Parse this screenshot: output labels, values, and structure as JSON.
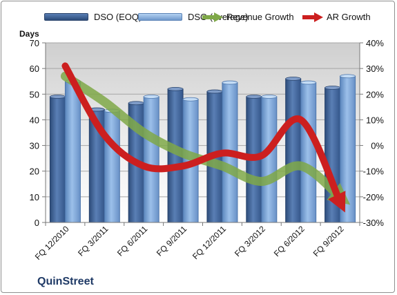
{
  "chart_data": {
    "type": "bar",
    "categories": [
      "FQ 12/2010",
      "FQ 3/2011",
      "FQ 6/2011",
      "FQ 9/2011",
      "FQ 12/2011",
      "FQ 3/2012",
      "FQ 6/2012",
      "FQ 9/2012"
    ],
    "series": [
      {
        "name": "DSO (EOQ)",
        "type": "bar",
        "axis": "left",
        "values": [
          49,
          44,
          46.5,
          52,
          51,
          49,
          56,
          52.5
        ]
      },
      {
        "name": "DSO (average)",
        "type": "bar",
        "axis": "left",
        "values": [
          55,
          43.5,
          49,
          48,
          54.5,
          49,
          54.5,
          57
        ]
      },
      {
        "name": "Revenue Growth",
        "type": "line",
        "axis": "right",
        "values": [
          27,
          17,
          5,
          -3,
          -8,
          -14,
          -8,
          -20
        ]
      },
      {
        "name": "AR Growth",
        "type": "line",
        "axis": "right",
        "values": [
          31,
          4,
          -8,
          -8,
          -3,
          -4,
          10,
          -22
        ]
      }
    ],
    "ylabel": "Days",
    "ylim": [
      0,
      70
    ],
    "yticks": [
      0,
      10,
      20,
      30,
      40,
      50,
      60,
      70
    ],
    "y2lim": [
      -30,
      40
    ],
    "y2ticks": [
      "-30%",
      "-20%",
      "-10%",
      "0%",
      "10%",
      "20%",
      "30%",
      "40%"
    ],
    "legend_position": "top",
    "grid": true,
    "colors": {
      "dso_eoq": "#4a6fa5",
      "dso_avg": "#7ea6d8",
      "revenue_growth": "#7fa848",
      "ar_growth": "#cc1f1f"
    }
  },
  "company": "QuinStreet"
}
